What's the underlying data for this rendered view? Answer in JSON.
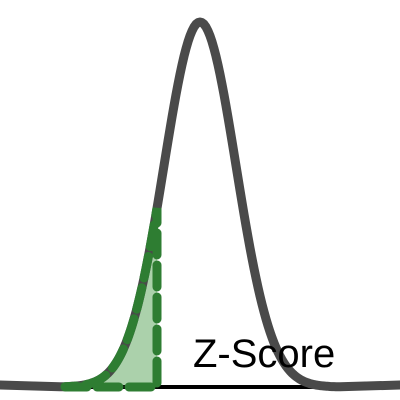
{
  "label": "Z-Score"
}
